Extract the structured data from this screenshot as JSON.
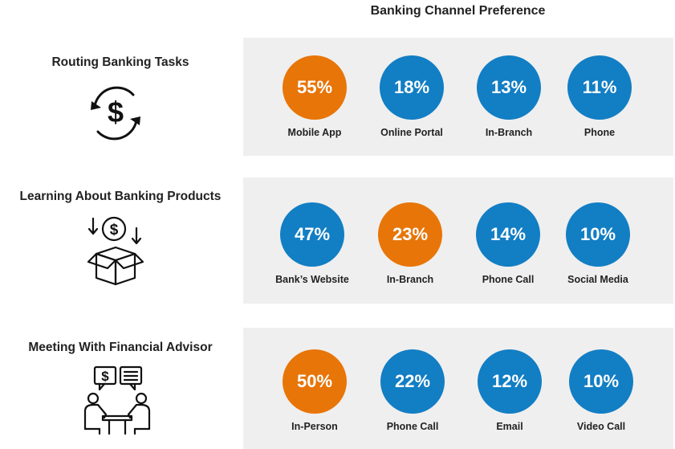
{
  "title": "Banking Channel Preference",
  "colors": {
    "primary": "#127ec4",
    "highlight": "#e87508",
    "panel": "#efefef"
  },
  "rows": [
    {
      "label": "Routing Banking Tasks",
      "icon": "dollar-cycle-icon",
      "items": [
        {
          "label": "Mobile App",
          "value": "55%",
          "highlight": true
        },
        {
          "label": "Online Portal",
          "value": "18%",
          "highlight": false
        },
        {
          "label": "In-Branch",
          "value": "13%",
          "highlight": false
        },
        {
          "label": "Phone",
          "value": "11%",
          "highlight": false
        }
      ]
    },
    {
      "label": "Learning About Banking Products",
      "icon": "money-box-icon",
      "items": [
        {
          "label": "Bank’s Website",
          "value": "47%",
          "highlight": false
        },
        {
          "label": "In-Branch",
          "value": "23%",
          "highlight": true
        },
        {
          "label": "Phone Call",
          "value": "14%",
          "highlight": false
        },
        {
          "label": "Social Media",
          "value": "10%",
          "highlight": false
        }
      ]
    },
    {
      "label": "Meeting With Financial Advisor",
      "icon": "advisor-meeting-icon",
      "items": [
        {
          "label": "In-Person",
          "value": "50%",
          "highlight": true
        },
        {
          "label": "Phone Call",
          "value": "22%",
          "highlight": false
        },
        {
          "label": "Email",
          "value": "12%",
          "highlight": false
        },
        {
          "label": "Video Call",
          "value": "10%",
          "highlight": false
        }
      ]
    }
  ],
  "chart_data": {
    "type": "table",
    "title": "Banking Channel Preference",
    "rows": [
      {
        "category": "Routing Banking Tasks",
        "labels": [
          "Mobile App",
          "Online Portal",
          "In-Branch",
          "Phone"
        ],
        "values": [
          55,
          18,
          13,
          11
        ]
      },
      {
        "category": "Learning About Banking Products",
        "labels": [
          "Bank’s Website",
          "In-Branch",
          "Phone Call",
          "Social Media"
        ],
        "values": [
          47,
          23,
          14,
          10
        ]
      },
      {
        "category": "Meeting With Financial Advisor",
        "labels": [
          "In-Person",
          "Phone Call",
          "Email",
          "Video Call"
        ],
        "values": [
          50,
          22,
          12,
          10
        ]
      }
    ]
  }
}
